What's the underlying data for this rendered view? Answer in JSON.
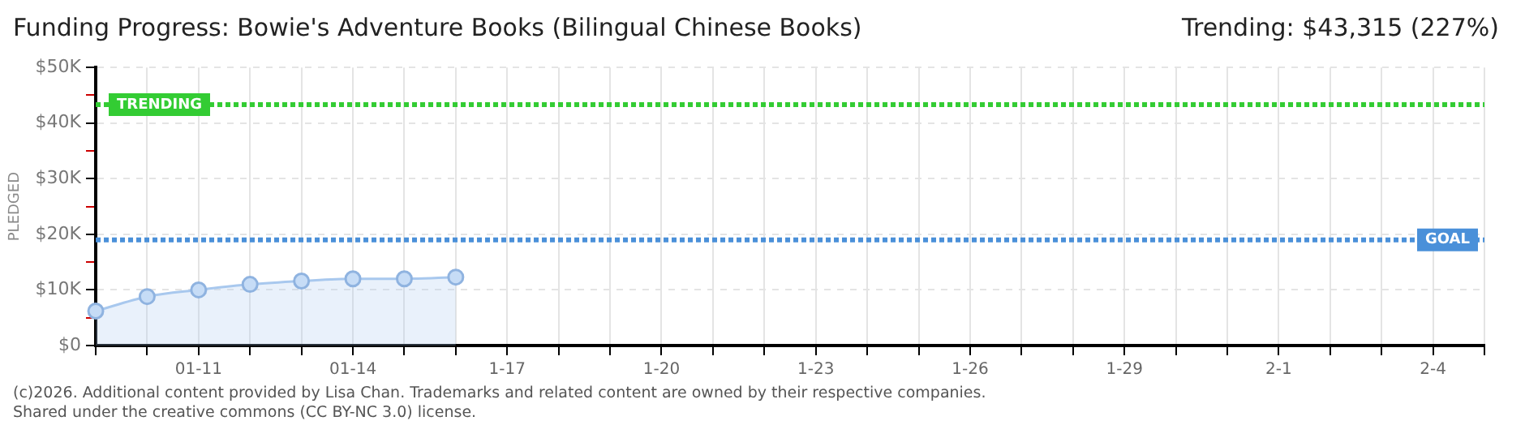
{
  "chart_data": {
    "type": "area",
    "title": "Funding Progress: Bowie's Adventure Books (Bilingual Chinese Books)",
    "subtitle": "Trending: $43,315 (227%)",
    "ylabel": "PLEDGED",
    "categories": [
      null,
      null,
      "01-11",
      null,
      null,
      "01-14",
      null,
      null,
      "1-17",
      null,
      null,
      "1-20",
      null,
      null,
      "1-23",
      null,
      null,
      "1-26",
      null,
      null,
      "1-29",
      null,
      null,
      "2-1",
      null,
      null,
      "2-4",
      null
    ],
    "series": [
      {
        "color": "#a8c8ee",
        "values": [
          6200,
          8800,
          10000,
          11000,
          11600,
          12000,
          12000,
          12300,
          null,
          null,
          null,
          null,
          null,
          null,
          null,
          null,
          null,
          null,
          null,
          null,
          null,
          null,
          null,
          null,
          null,
          null,
          null,
          null
        ]
      }
    ],
    "ylim": [
      0,
      50000
    ],
    "yticks": [
      {
        "value": 0,
        "label": "$0"
      },
      {
        "value": 5000,
        "label": null
      },
      {
        "value": 10000,
        "label": "$10K"
      },
      {
        "value": 15000,
        "label": null
      },
      {
        "value": 20000,
        "label": "$20K"
      },
      {
        "value": 25000,
        "label": null
      },
      {
        "value": 30000,
        "label": "$30K"
      },
      {
        "value": 35000,
        "label": null
      },
      {
        "value": 40000,
        "label": "$40K"
      },
      {
        "value": 45000,
        "label": null
      },
      {
        "value": 50000,
        "label": "$50K"
      }
    ],
    "ref_lines": [
      {
        "axis": "y",
        "value": 43315,
        "label": "TRENDING",
        "color": "#33cc33",
        "line_style": "dotted"
      },
      {
        "axis": "y",
        "value": 19000,
        "label": "GOAL",
        "color": "#4a90d9",
        "line_style": "dotted"
      }
    ],
    "annotations": [
      "(c)2026. Additional content provided by Lisa Chan. Trademarks and related content are owned by their respective companies.",
      "Shared under the creative commons (CC BY-NC 3.0) license."
    ],
    "grid": true,
    "legend": false,
    "marker": "circle"
  }
}
